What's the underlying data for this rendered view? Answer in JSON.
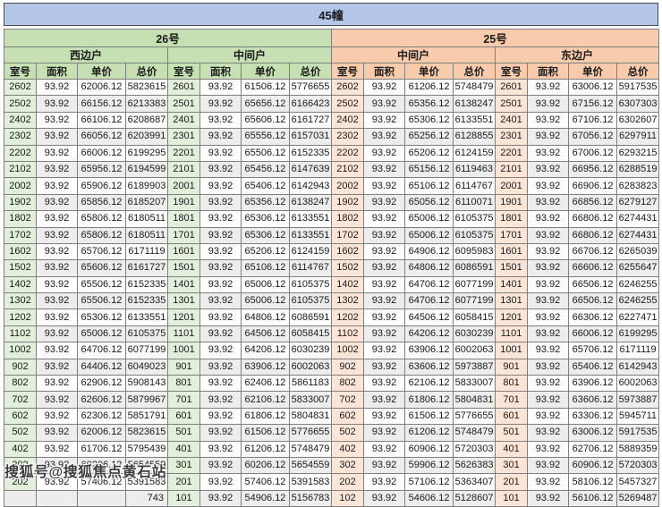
{
  "title": "45幢",
  "watermark": "搜狐号@搜狐焦点黄石站",
  "colors": {
    "title_bar": "#b4c6e7",
    "section_26_header": "#c6e0b4",
    "section_26_room_column": "#e2efda",
    "section_25_header": "#f8cbad",
    "section_25_room_column": "#fce4d6",
    "stripe": "#ededed"
  },
  "chart_data": {
    "type": "table",
    "title": "45幢",
    "sections": [
      {
        "name": "26号",
        "units": [
          {
            "name": "西边户",
            "columns": [
              "室号",
              "面积",
              "单价",
              "总价"
            ],
            "rows": [
              [
                "2602",
                "93.92",
                "62006.12",
                "5823615"
              ],
              [
                "2502",
                "93.92",
                "66156.12",
                "6213383"
              ],
              [
                "2402",
                "93.92",
                "66106.12",
                "6208687"
              ],
              [
                "2302",
                "93.92",
                "66056.12",
                "6203991"
              ],
              [
                "2202",
                "93.92",
                "66006.12",
                "6199295"
              ],
              [
                "2102",
                "93.92",
                "65956.12",
                "6194599"
              ],
              [
                "2002",
                "93.92",
                "65906.12",
                "6189903"
              ],
              [
                "1902",
                "93.92",
                "65856.12",
                "6185207"
              ],
              [
                "1802",
                "93.92",
                "65806.12",
                "6180511"
              ],
              [
                "1702",
                "93.92",
                "65806.12",
                "6180511"
              ],
              [
                "1602",
                "93.92",
                "65706.12",
                "6171119"
              ],
              [
                "1502",
                "93.92",
                "65606.12",
                "6161727"
              ],
              [
                "1402",
                "93.92",
                "65506.12",
                "6152335"
              ],
              [
                "1302",
                "93.92",
                "65506.12",
                "6152335"
              ],
              [
                "1202",
                "93.92",
                "65306.12",
                "6133551"
              ],
              [
                "1102",
                "93.92",
                "65006.12",
                "6105375"
              ],
              [
                "1002",
                "93.92",
                "64706.12",
                "6077199"
              ],
              [
                "902",
                "93.92",
                "64406.12",
                "6049023"
              ],
              [
                "802",
                "93.92",
                "62906.12",
                "5908143"
              ],
              [
                "702",
                "93.92",
                "62606.12",
                "5879967"
              ],
              [
                "602",
                "93.92",
                "62306.12",
                "5851791"
              ],
              [
                "502",
                "93.92",
                "62006.12",
                "5823615"
              ],
              [
                "402",
                "93.92",
                "61706.12",
                "5795439"
              ],
              [
                "302",
                "93.92",
                "60206.12",
                "5654559"
              ],
              [
                "202",
                "93.92",
                "57406.12",
                "5391583"
              ],
              [
                "",
                "",
                "",
                "743"
              ]
            ]
          },
          {
            "name": "中间户",
            "columns": [
              "室号",
              "面积",
              "单价",
              "总价"
            ],
            "rows": [
              [
                "2601",
                "93.92",
                "61506.12",
                "5776655"
              ],
              [
                "2501",
                "93.92",
                "65656.12",
                "6166423"
              ],
              [
                "2401",
                "93.92",
                "65606.12",
                "6161727"
              ],
              [
                "2301",
                "93.92",
                "65556.12",
                "6157031"
              ],
              [
                "2201",
                "93.92",
                "65506.12",
                "6152335"
              ],
              [
                "2101",
                "93.92",
                "65456.12",
                "6147639"
              ],
              [
                "2001",
                "93.92",
                "65406.12",
                "6142943"
              ],
              [
                "1901",
                "93.92",
                "65356.12",
                "6138247"
              ],
              [
                "1801",
                "93.92",
                "65306.12",
                "6133551"
              ],
              [
                "1701",
                "93.92",
                "65306.12",
                "6133551"
              ],
              [
                "1601",
                "93.92",
                "65206.12",
                "6124159"
              ],
              [
                "1501",
                "93.92",
                "65106.12",
                "6114767"
              ],
              [
                "1401",
                "93.92",
                "65006.12",
                "6105375"
              ],
              [
                "1301",
                "93.92",
                "65006.12",
                "6105375"
              ],
              [
                "1201",
                "93.92",
                "64806.12",
                "6086591"
              ],
              [
                "1101",
                "93.92",
                "64506.12",
                "6058415"
              ],
              [
                "1001",
                "93.92",
                "64206.12",
                "6030239"
              ],
              [
                "901",
                "93.92",
                "63906.12",
                "6002063"
              ],
              [
                "801",
                "93.92",
                "62406.12",
                "5861183"
              ],
              [
                "701",
                "93.92",
                "62106.12",
                "5833007"
              ],
              [
                "601",
                "93.92",
                "61806.12",
                "5804831"
              ],
              [
                "501",
                "93.92",
                "61506.12",
                "5776655"
              ],
              [
                "401",
                "93.92",
                "61206.12",
                "5748479"
              ],
              [
                "301",
                "93.92",
                "60206.12",
                "5654559"
              ],
              [
                "201",
                "93.92",
                "57406.12",
                "5391583"
              ],
              [
                "101",
                "93.92",
                "54906.12",
                "5156783"
              ]
            ]
          }
        ]
      },
      {
        "name": "25号",
        "units": [
          {
            "name": "中间户",
            "columns": [
              "室号",
              "面积",
              "单价",
              "总价"
            ],
            "rows": [
              [
                "2602",
                "93.92",
                "61206.12",
                "5748479"
              ],
              [
                "2502",
                "93.92",
                "65356.12",
                "6138247"
              ],
              [
                "2402",
                "93.92",
                "65306.12",
                "6133551"
              ],
              [
                "2302",
                "93.92",
                "65256.12",
                "6128855"
              ],
              [
                "2202",
                "93.92",
                "65206.12",
                "6124159"
              ],
              [
                "2102",
                "93.92",
                "65156.12",
                "6119463"
              ],
              [
                "2002",
                "93.92",
                "65106.12",
                "6114767"
              ],
              [
                "1902",
                "93.92",
                "65056.12",
                "6110071"
              ],
              [
                "1802",
                "93.92",
                "65006.12",
                "6105375"
              ],
              [
                "1702",
                "93.92",
                "65006.12",
                "6105375"
              ],
              [
                "1602",
                "93.92",
                "64906.12",
                "6095983"
              ],
              [
                "1502",
                "93.92",
                "64806.12",
                "6086591"
              ],
              [
                "1402",
                "93.92",
                "64706.12",
                "6077199"
              ],
              [
                "1302",
                "93.92",
                "64706.12",
                "6077199"
              ],
              [
                "1202",
                "93.92",
                "64506.12",
                "6058415"
              ],
              [
                "1102",
                "93.92",
                "64206.12",
                "6030239"
              ],
              [
                "1002",
                "93.92",
                "63906.12",
                "6002063"
              ],
              [
                "902",
                "93.92",
                "63606.12",
                "5973887"
              ],
              [
                "802",
                "93.92",
                "62106.12",
                "5833007"
              ],
              [
                "702",
                "93.92",
                "61806.12",
                "5804831"
              ],
              [
                "602",
                "93.92",
                "61506.12",
                "5776655"
              ],
              [
                "502",
                "93.92",
                "61206.12",
                "5748479"
              ],
              [
                "402",
                "93.92",
                "60906.12",
                "5720303"
              ],
              [
                "302",
                "93.92",
                "59906.12",
                "5626383"
              ],
              [
                "202",
                "93.92",
                "57106.12",
                "5363407"
              ],
              [
                "102",
                "93.92",
                "54606.12",
                "5128607"
              ]
            ]
          },
          {
            "name": "东边户",
            "columns": [
              "室号",
              "面积",
              "单价",
              "总价"
            ],
            "rows": [
              [
                "2601",
                "93.92",
                "63006.12",
                "5917535"
              ],
              [
                "2501",
                "93.92",
                "67156.12",
                "6307303"
              ],
              [
                "2401",
                "93.92",
                "67106.12",
                "6302607"
              ],
              [
                "2301",
                "93.92",
                "67056.12",
                "6297911"
              ],
              [
                "2201",
                "93.92",
                "67006.12",
                "6293215"
              ],
              [
                "2101",
                "93.92",
                "66956.12",
                "6288519"
              ],
              [
                "2001",
                "93.92",
                "66906.12",
                "6283823"
              ],
              [
                "1901",
                "93.92",
                "66856.12",
                "6279127"
              ],
              [
                "1801",
                "93.92",
                "66806.12",
                "6274431"
              ],
              [
                "1701",
                "93.92",
                "66806.12",
                "6274431"
              ],
              [
                "1601",
                "93.92",
                "66706.12",
                "6265039"
              ],
              [
                "1501",
                "93.92",
                "66606.12",
                "6255647"
              ],
              [
                "1401",
                "93.92",
                "66506.12",
                "6246255"
              ],
              [
                "1301",
                "93.92",
                "66506.12",
                "6246255"
              ],
              [
                "1201",
                "93.92",
                "66306.12",
                "6227471"
              ],
              [
                "1101",
                "93.92",
                "66006.12",
                "6199295"
              ],
              [
                "1001",
                "93.92",
                "65706.12",
                "6171119"
              ],
              [
                "901",
                "93.92",
                "65406.12",
                "6142943"
              ],
              [
                "801",
                "93.92",
                "63906.12",
                "6002063"
              ],
              [
                "701",
                "93.92",
                "63606.12",
                "5973887"
              ],
              [
                "601",
                "93.92",
                "63306.12",
                "5945711"
              ],
              [
                "501",
                "93.92",
                "63006.12",
                "5917535"
              ],
              [
                "401",
                "93.92",
                "62706.12",
                "5889359"
              ],
              [
                "301",
                "93.92",
                "60906.12",
                "5720303"
              ],
              [
                "201",
                "93.92",
                "58106.12",
                "5457327"
              ],
              [
                "101",
                "93.92",
                "56106.12",
                "5269487"
              ]
            ]
          }
        ]
      }
    ]
  }
}
